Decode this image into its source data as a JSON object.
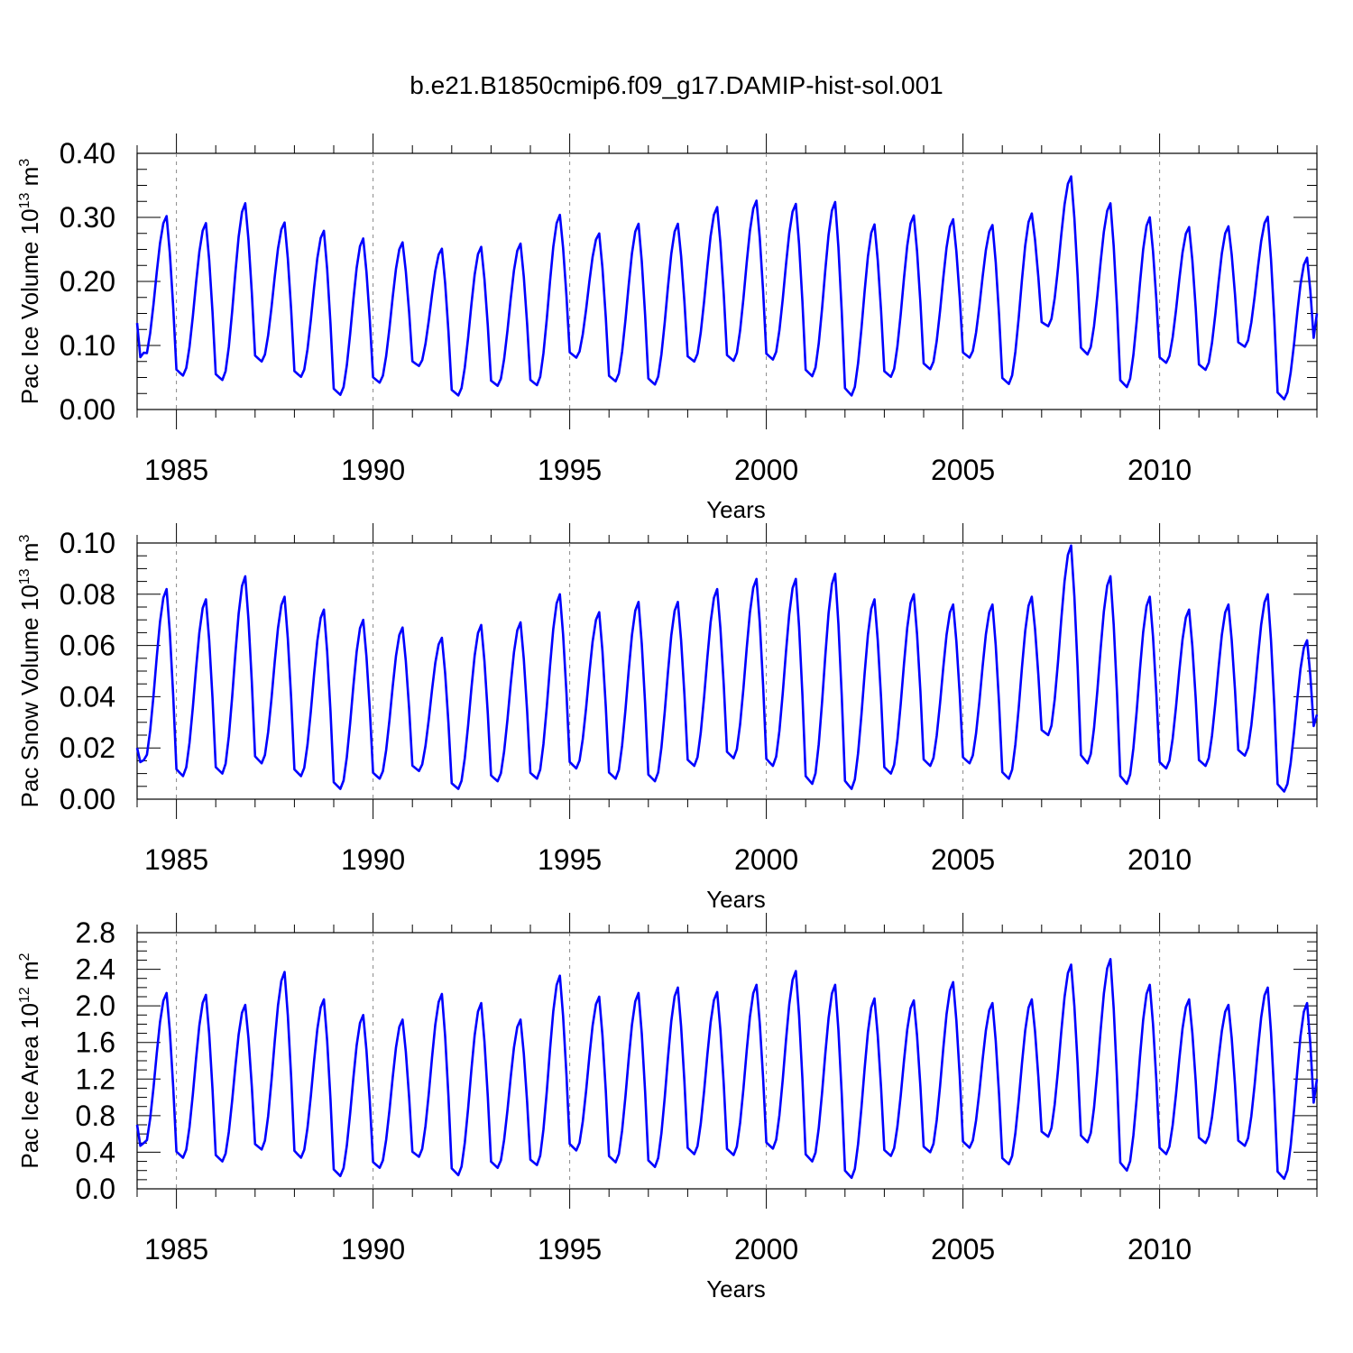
{
  "title": "b.e21.B1850cmip6.f09_g17.DAMIP-hist-sol.001",
  "colors": {
    "series": "#0000ff",
    "axis": "#000000",
    "refline": "#888888"
  },
  "chart_data": [
    {
      "type": "line",
      "ylabel": "Pac Ice Volume 10",
      "ylabel_exp": "13",
      "ylabel_unit": "m",
      "ylabel_unit_exp": "3",
      "xlabel": "Years",
      "xlim": [
        1984.0,
        2014.0
      ],
      "ylim": [
        0.0,
        0.4
      ],
      "yticks": [
        "0.00",
        "0.10",
        "0.20",
        "0.30",
        "0.40"
      ],
      "xticks": [
        "1985",
        "1990",
        "1995",
        "2000",
        "2005",
        "2010"
      ],
      "year_start": 1984,
      "grid": "dashed vertical at each 5-year tick",
      "annual": [
        {
          "year": 1984,
          "min": 0.077,
          "max": 0.302
        },
        {
          "year": 1985,
          "min": 0.053,
          "max": 0.291
        },
        {
          "year": 1986,
          "min": 0.046,
          "max": 0.322
        },
        {
          "year": 1987,
          "min": 0.075,
          "max": 0.292
        },
        {
          "year": 1988,
          "min": 0.051,
          "max": 0.279
        },
        {
          "year": 1989,
          "min": 0.023,
          "max": 0.267
        },
        {
          "year": 1990,
          "min": 0.042,
          "max": 0.261
        },
        {
          "year": 1991,
          "min": 0.068,
          "max": 0.251
        },
        {
          "year": 1992,
          "min": 0.022,
          "max": 0.254
        },
        {
          "year": 1993,
          "min": 0.037,
          "max": 0.259
        },
        {
          "year": 1994,
          "min": 0.038,
          "max": 0.304
        },
        {
          "year": 1995,
          "min": 0.081,
          "max": 0.275
        },
        {
          "year": 1996,
          "min": 0.044,
          "max": 0.29
        },
        {
          "year": 1997,
          "min": 0.039,
          "max": 0.29
        },
        {
          "year": 1998,
          "min": 0.075,
          "max": 0.316
        },
        {
          "year": 1999,
          "min": 0.076,
          "max": 0.326
        },
        {
          "year": 2000,
          "min": 0.078,
          "max": 0.321
        },
        {
          "year": 2001,
          "min": 0.052,
          "max": 0.324
        },
        {
          "year": 2002,
          "min": 0.022,
          "max": 0.289
        },
        {
          "year": 2003,
          "min": 0.051,
          "max": 0.303
        },
        {
          "year": 2004,
          "min": 0.063,
          "max": 0.297
        },
        {
          "year": 2005,
          "min": 0.081,
          "max": 0.288
        },
        {
          "year": 2006,
          "min": 0.04,
          "max": 0.306
        },
        {
          "year": 2007,
          "min": 0.13,
          "max": 0.364
        },
        {
          "year": 2008,
          "min": 0.086,
          "max": 0.322
        },
        {
          "year": 2009,
          "min": 0.035,
          "max": 0.3
        },
        {
          "year": 2010,
          "min": 0.073,
          "max": 0.285
        },
        {
          "year": 2011,
          "min": 0.062,
          "max": 0.286
        },
        {
          "year": 2012,
          "min": 0.098,
          "max": 0.301
        },
        {
          "year": 2013,
          "min": 0.016,
          "max": 0.237
        }
      ],
      "start": 0.135,
      "end": 0.15
    },
    {
      "type": "line",
      "ylabel": "Pac Snow Volume 10",
      "ylabel_exp": "13",
      "ylabel_unit": "m",
      "ylabel_unit_exp": "3",
      "xlabel": "Years",
      "xlim": [
        1984.0,
        2014.0
      ],
      "ylim": [
        0.0,
        0.1
      ],
      "yticks": [
        "0.00",
        "0.02",
        "0.04",
        "0.06",
        "0.08",
        "0.10"
      ],
      "xticks": [
        "1985",
        "1990",
        "1995",
        "2000",
        "2005",
        "2010"
      ],
      "year_start": 1984,
      "grid": "dashed vertical at each 5-year tick",
      "annual": [
        {
          "year": 1984,
          "min": 0.014,
          "max": 0.082
        },
        {
          "year": 1985,
          "min": 0.009,
          "max": 0.078
        },
        {
          "year": 1986,
          "min": 0.01,
          "max": 0.087
        },
        {
          "year": 1987,
          "min": 0.014,
          "max": 0.079
        },
        {
          "year": 1988,
          "min": 0.009,
          "max": 0.074
        },
        {
          "year": 1989,
          "min": 0.004,
          "max": 0.07
        },
        {
          "year": 1990,
          "min": 0.008,
          "max": 0.067
        },
        {
          "year": 1991,
          "min": 0.011,
          "max": 0.063
        },
        {
          "year": 1992,
          "min": 0.004,
          "max": 0.068
        },
        {
          "year": 1993,
          "min": 0.007,
          "max": 0.069
        },
        {
          "year": 1994,
          "min": 0.008,
          "max": 0.08
        },
        {
          "year": 1995,
          "min": 0.012,
          "max": 0.073
        },
        {
          "year": 1996,
          "min": 0.008,
          "max": 0.077
        },
        {
          "year": 1997,
          "min": 0.007,
          "max": 0.077
        },
        {
          "year": 1998,
          "min": 0.013,
          "max": 0.082
        },
        {
          "year": 1999,
          "min": 0.016,
          "max": 0.086
        },
        {
          "year": 2000,
          "min": 0.013,
          "max": 0.086
        },
        {
          "year": 2001,
          "min": 0.006,
          "max": 0.088
        },
        {
          "year": 2002,
          "min": 0.004,
          "max": 0.078
        },
        {
          "year": 2003,
          "min": 0.01,
          "max": 0.08
        },
        {
          "year": 2004,
          "min": 0.013,
          "max": 0.076
        },
        {
          "year": 2005,
          "min": 0.014,
          "max": 0.076
        },
        {
          "year": 2006,
          "min": 0.008,
          "max": 0.079
        },
        {
          "year": 2007,
          "min": 0.025,
          "max": 0.099
        },
        {
          "year": 2008,
          "min": 0.014,
          "max": 0.087
        },
        {
          "year": 2009,
          "min": 0.006,
          "max": 0.079
        },
        {
          "year": 2010,
          "min": 0.012,
          "max": 0.074
        },
        {
          "year": 2011,
          "min": 0.013,
          "max": 0.076
        },
        {
          "year": 2012,
          "min": 0.017,
          "max": 0.08
        },
        {
          "year": 2013,
          "min": 0.003,
          "max": 0.062
        }
      ],
      "start": 0.02,
      "end": 0.033
    },
    {
      "type": "line",
      "ylabel": "Pac Ice Area 10",
      "ylabel_exp": "12",
      "ylabel_unit": "m",
      "ylabel_unit_exp": "2",
      "xlabel": "Years",
      "xlim": [
        1984.0,
        2014.0
      ],
      "ylim": [
        0.0,
        2.8
      ],
      "yticks": [
        "0.0",
        "0.4",
        "0.8",
        "1.2",
        "1.6",
        "2.0",
        "2.4",
        "2.8"
      ],
      "xticks": [
        "1985",
        "1990",
        "1995",
        "2000",
        "2005",
        "2010"
      ],
      "year_start": 1984,
      "grid": "dashed vertical at each 5-year tick",
      "annual": [
        {
          "year": 1984,
          "min": 0.45,
          "max": 2.14
        },
        {
          "year": 1985,
          "min": 0.34,
          "max": 2.12
        },
        {
          "year": 1986,
          "min": 0.3,
          "max": 2.01
        },
        {
          "year": 1987,
          "min": 0.43,
          "max": 2.37
        },
        {
          "year": 1988,
          "min": 0.34,
          "max": 2.07
        },
        {
          "year": 1989,
          "min": 0.14,
          "max": 1.9
        },
        {
          "year": 1990,
          "min": 0.23,
          "max": 1.85
        },
        {
          "year": 1991,
          "min": 0.35,
          "max": 2.13
        },
        {
          "year": 1992,
          "min": 0.15,
          "max": 2.03
        },
        {
          "year": 1993,
          "min": 0.23,
          "max": 1.85
        },
        {
          "year": 1994,
          "min": 0.26,
          "max": 2.33
        },
        {
          "year": 1995,
          "min": 0.42,
          "max": 2.1
        },
        {
          "year": 1996,
          "min": 0.29,
          "max": 2.14
        },
        {
          "year": 1997,
          "min": 0.24,
          "max": 2.2
        },
        {
          "year": 1998,
          "min": 0.38,
          "max": 2.15
        },
        {
          "year": 1999,
          "min": 0.37,
          "max": 2.23
        },
        {
          "year": 2000,
          "min": 0.44,
          "max": 2.38
        },
        {
          "year": 2001,
          "min": 0.3,
          "max": 2.23
        },
        {
          "year": 2002,
          "min": 0.12,
          "max": 2.08
        },
        {
          "year": 2003,
          "min": 0.36,
          "max": 2.06
        },
        {
          "year": 2004,
          "min": 0.4,
          "max": 2.26
        },
        {
          "year": 2005,
          "min": 0.45,
          "max": 2.03
        },
        {
          "year": 2006,
          "min": 0.27,
          "max": 2.07
        },
        {
          "year": 2007,
          "min": 0.57,
          "max": 2.45
        },
        {
          "year": 2008,
          "min": 0.51,
          "max": 2.51
        },
        {
          "year": 2009,
          "min": 0.2,
          "max": 2.23
        },
        {
          "year": 2010,
          "min": 0.38,
          "max": 2.07
        },
        {
          "year": 2011,
          "min": 0.5,
          "max": 2.01
        },
        {
          "year": 2012,
          "min": 0.47,
          "max": 2.2
        },
        {
          "year": 2013,
          "min": 0.11,
          "max": 2.03
        }
      ],
      "start": 0.7,
      "end": 1.2
    }
  ]
}
